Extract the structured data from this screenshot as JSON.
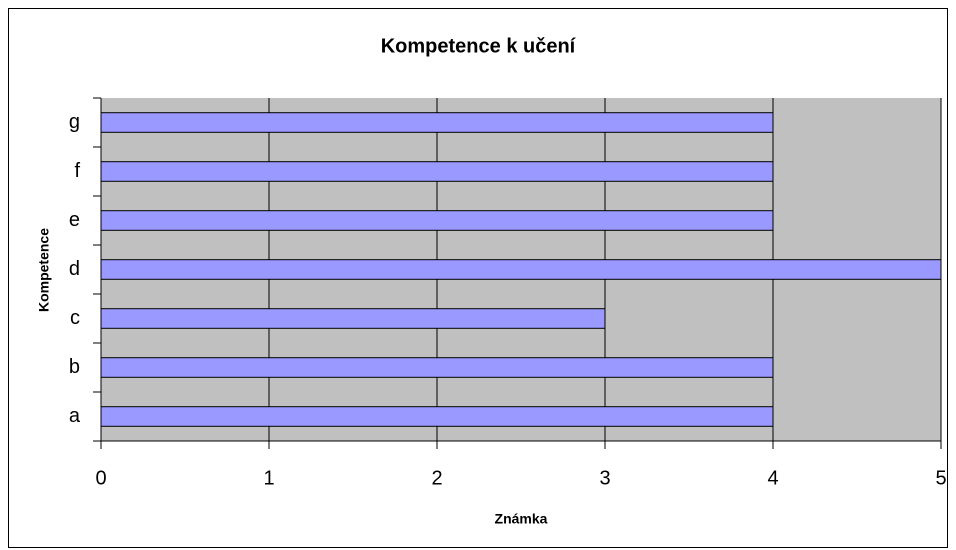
{
  "chart_data": {
    "type": "bar",
    "orientation": "horizontal",
    "title": "Kompetence k učení",
    "categories": [
      "a",
      "b",
      "c",
      "d",
      "e",
      "f",
      "g"
    ],
    "values": [
      4,
      4,
      3,
      5,
      4,
      4,
      4
    ],
    "color": "#9999ff",
    "xlim": [
      0,
      5
    ],
    "xticks": [
      0,
      1,
      2,
      3,
      4,
      5
    ],
    "xlabel": "Známka",
    "ylabel": "Kompetence",
    "grid": true
  }
}
